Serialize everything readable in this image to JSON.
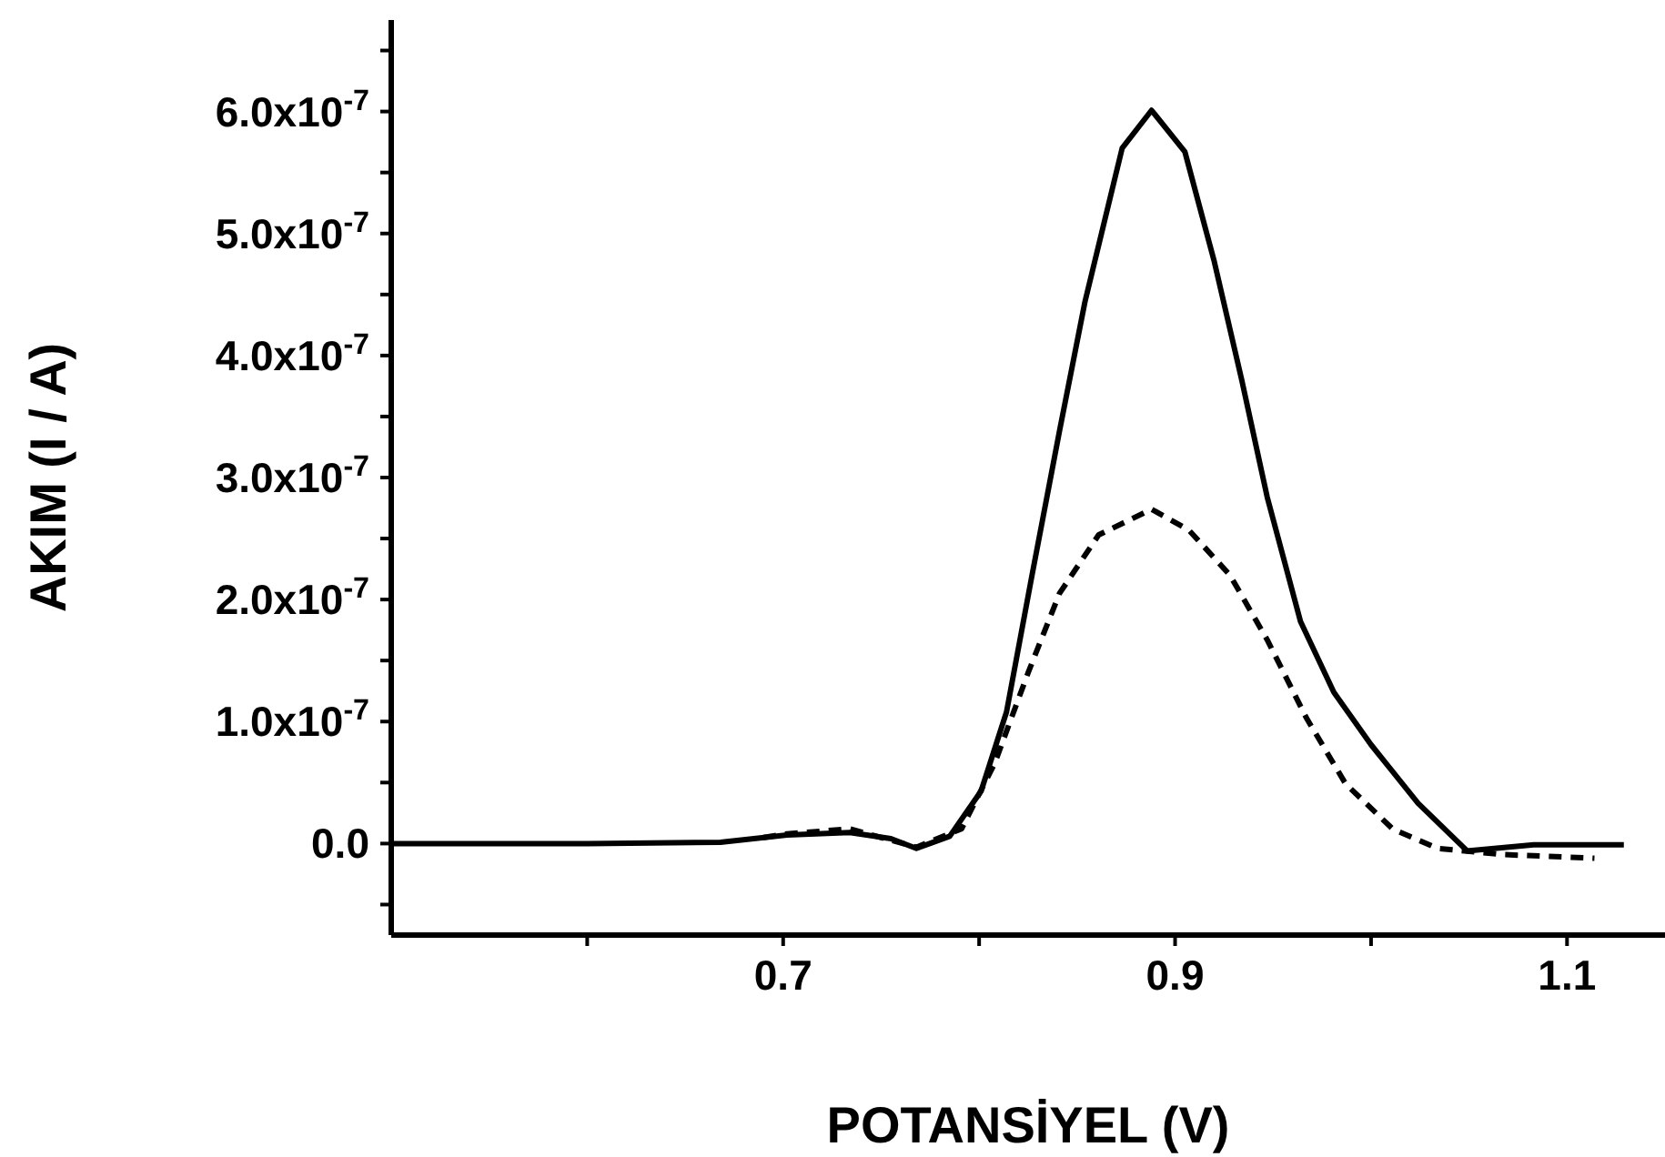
{
  "chart_data": {
    "type": "line",
    "xlabel": "POTANSİYEL (V)",
    "ylabel": "AKIM  (I / A)",
    "xlim": [
      0.5,
      1.15
    ],
    "ylim": [
      -7.5e-08,
      6.75e-07
    ],
    "xticks": [
      {
        "value": 0.6,
        "label": null
      },
      0.7,
      {
        "value": 0.8,
        "label": null
      },
      0.9,
      {
        "value": 1.0,
        "label": null
      },
      1.1
    ],
    "yticks": [
      {
        "value": -5e-08,
        "label": null
      },
      {
        "value": 0,
        "label": "0.0"
      },
      {
        "value": 5e-08,
        "label": null
      },
      {
        "value": 1e-07,
        "label": "1.0x10$^{-7}$"
      },
      {
        "value": 1.5e-07,
        "label": null
      },
      {
        "value": 2e-07,
        "label": "2.0x10$^{-7}$"
      },
      {
        "value": 2.5e-07,
        "label": null
      },
      {
        "value": 3e-07,
        "label": "3.0x10$^{-7}$"
      },
      {
        "value": 3.5e-07,
        "label": null
      },
      {
        "value": 4e-07,
        "label": "4.0x10$^{-7}$"
      },
      {
        "value": 4.5e-07,
        "label": null
      },
      {
        "value": 5e-07,
        "label": "5.0x10$^{-7}$"
      },
      {
        "value": 5.5e-07,
        "label": null
      },
      {
        "value": 6e-07,
        "label": "6.0x10$^{-7}$"
      },
      {
        "value": 6.5e-07,
        "label": null
      }
    ],
    "series": [
      {
        "color": "#000000",
        "line_style": "solid",
        "x": [
          0.5,
          0.6,
          0.668,
          0.702,
          0.734,
          0.755,
          0.768,
          0.785,
          0.801,
          0.814,
          0.827,
          0.841,
          0.854,
          0.873,
          0.888,
          0.905,
          0.92,
          0.934,
          0.947,
          0.964,
          0.981,
          1.0,
          1.024,
          1.049,
          1.083,
          1.129
        ],
        "values": [
          0,
          0,
          1e-09,
          7e-09,
          9e-09,
          4e-09,
          -4e-09,
          6e-09,
          4.3e-08,
          1.08e-07,
          2.2e-07,
          3.38e-07,
          4.44e-07,
          5.7e-07,
          6.01e-07,
          5.67e-07,
          4.77e-07,
          3.8e-07,
          2.84e-07,
          1.82e-07,
          1.24e-07,
          8.1e-08,
          3.3e-08,
          -6e-09,
          -1e-09,
          -1e-09
        ]
      },
      {
        "color": "#000000",
        "line_style": "dashed",
        "x": [
          0.69,
          0.702,
          0.734,
          0.768,
          0.791,
          0.808,
          0.825,
          0.841,
          0.861,
          0.888,
          0.907,
          0.928,
          0.947,
          0.967,
          0.987,
          1.011,
          1.034,
          1.067,
          1.114
        ],
        "values": [
          5e-09,
          8e-09,
          1.2e-08,
          -3e-09,
          1.2e-08,
          6.6e-08,
          1.4e-07,
          2.05e-07,
          2.53e-07,
          2.74e-07,
          2.57e-07,
          2.2e-07,
          1.67e-07,
          1.03e-07,
          4.9e-08,
          1.2e-08,
          -4e-09,
          -9e-09,
          -1.2e-08
        ]
      }
    ]
  }
}
